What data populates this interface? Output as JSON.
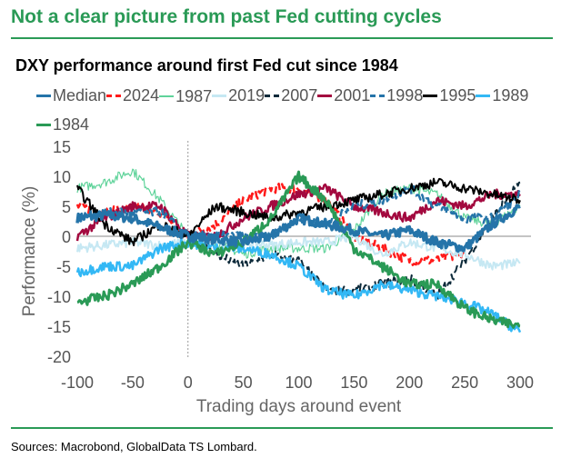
{
  "header": {
    "title": "Not a clear picture from past Fed cutting cycles"
  },
  "footer": {
    "source": "Sources: Macrobond, GlobalData TS Lombard."
  },
  "chart_data": {
    "type": "line",
    "title": "DXY performance around first Fed cut since 1984",
    "xlabel": "Trading days around event",
    "ylabel": "Performance (%)",
    "xlim": [
      -100,
      300
    ],
    "ylim": [
      -20,
      15
    ],
    "xticks": [
      "-100",
      "-50",
      "0",
      "50",
      "100",
      "150",
      "200",
      "250",
      "300"
    ],
    "yticks": [
      "15",
      "10",
      "5",
      "0",
      "-5",
      "-10",
      "-15",
      "-20"
    ],
    "x": [
      -100,
      -75,
      -50,
      -25,
      0,
      25,
      50,
      75,
      100,
      125,
      150,
      175,
      200,
      225,
      250,
      275,
      300
    ],
    "legend_position": "top",
    "series": [
      {
        "name": "Median",
        "color": "#2574a9",
        "style": "solid",
        "width": 3.5,
        "values": [
          3,
          3.5,
          3,
          1.5,
          0,
          -0.5,
          -1,
          0,
          3,
          2,
          1,
          0,
          1,
          -1,
          -2,
          2,
          5
        ]
      },
      {
        "name": "2024",
        "color": "#ff1a1a",
        "style": "dashed",
        "width": 2.5,
        "values": [
          5,
          4,
          5,
          4,
          0,
          2,
          6,
          8,
          8,
          6,
          0,
          -2,
          -4,
          -4,
          -3,
          null,
          null
        ]
      },
      {
        "name": "1987",
        "color": "#5fd39a",
        "style": "solid",
        "width": 1.2,
        "values": [
          8,
          9,
          11,
          6,
          0,
          -1,
          -3,
          -2,
          -2,
          -2,
          1,
          7,
          8,
          7,
          3,
          2,
          5
        ]
      },
      {
        "name": "2019",
        "color": "#c6e8f3",
        "style": "solid",
        "width": 2,
        "values": [
          -2,
          -1.5,
          -1,
          -1.5,
          -1,
          -1,
          -1,
          -1.5,
          -1,
          -1,
          0,
          -3,
          -1,
          -2,
          -3,
          -5,
          -4.5
        ]
      },
      {
        "name": "2007",
        "color": "#0d2a3a",
        "style": "dashed",
        "width": 2,
        "values": [
          null,
          null,
          null,
          null,
          0,
          -3,
          -5,
          -3,
          -4,
          -9,
          -9,
          -8,
          -7,
          -10,
          -4,
          3,
          9
        ]
      },
      {
        "name": "2001",
        "color": "#a3093f",
        "style": "solid",
        "width": 2.5,
        "values": [
          0,
          3,
          5,
          5,
          0,
          0,
          3,
          5,
          7,
          8,
          5,
          4,
          3,
          6,
          5,
          7,
          7
        ]
      },
      {
        "name": "1998",
        "color": "#2574a9",
        "style": "dashed",
        "width": 2.5,
        "values": [
          3,
          4,
          4,
          4,
          0,
          0,
          0,
          0,
          3,
          2,
          5,
          6,
          8,
          5,
          3,
          3,
          7
        ]
      },
      {
        "name": "1995",
        "color": "#000000",
        "style": "solid",
        "width": 2,
        "values": [
          8,
          2,
          -1,
          2,
          0,
          5,
          4,
          3,
          4,
          5,
          6,
          7,
          8,
          9,
          8,
          7,
          6
        ]
      },
      {
        "name": "1989",
        "color": "#33b8f5",
        "style": "solid",
        "width": 2.5,
        "values": [
          -6,
          -5,
          -5,
          -2,
          -1,
          -2,
          -2,
          -3,
          -5,
          -9,
          -10,
          -8,
          -9,
          -10,
          -11,
          -13,
          -16
        ]
      },
      {
        "name": "1984",
        "color": "#2a9a56",
        "style": "solid",
        "width": 3,
        "values": [
          -11,
          -10,
          -8,
          -5,
          -1,
          -3,
          -1,
          3,
          10,
          6,
          -2,
          -5,
          -8,
          -8,
          -12,
          -14,
          -15
        ]
      }
    ]
  }
}
